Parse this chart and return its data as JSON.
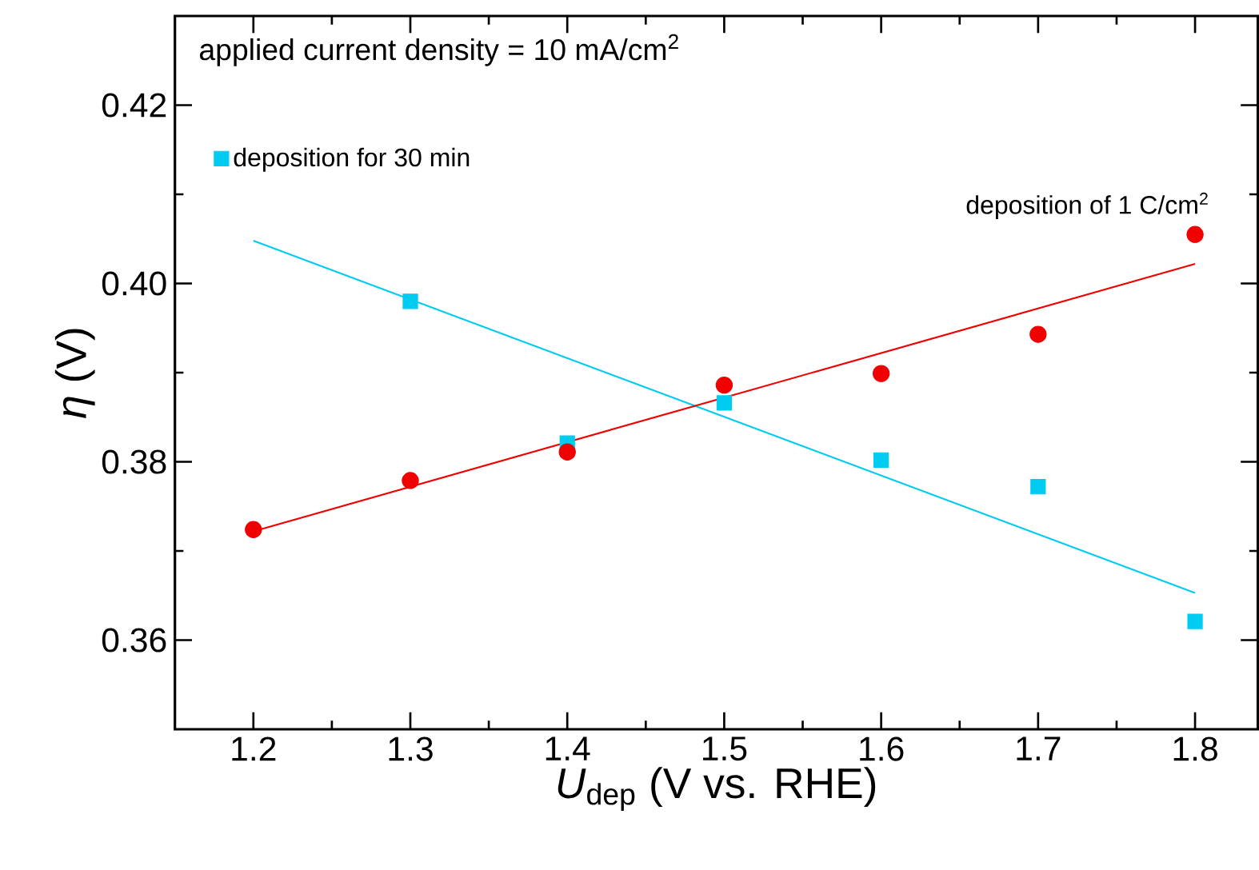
{
  "chart_data": {
    "type": "scatter",
    "xlabel": "*U*$_{dep}$ (V vs. RHE)",
    "ylabel": "*η* (V)",
    "xlim": [
      1.15,
      1.84
    ],
    "ylim": [
      0.35,
      0.43
    ],
    "xticks": [
      1.2,
      1.3,
      1.4,
      1.5,
      1.6,
      1.7,
      1.8
    ],
    "yticks": [
      0.36,
      0.38,
      {
        "value": 0.4,
        "label": "0.40"
      },
      0.42
    ],
    "legend": "top left",
    "grid": false,
    "annotations": [
      "applied current density = 10 mA/cm$^{2}$",
      {
        "text": "deposition of 1 C/cm$^{2}$",
        "x": 1.8,
        "y": 0.4055
      }
    ],
    "series": [
      {
        "name": "deposition for 30 min",
        "color": "#00ccf2",
        "marker": "square",
        "x": [
          1.3,
          1.4,
          1.5,
          1.6,
          1.7,
          1.8
        ],
        "values": [
          0.398,
          0.3821,
          0.3866,
          0.3802,
          0.3772,
          0.3621
        ]
      },
      {
        "color": "#f00000",
        "marker": "circle",
        "x": [
          1.2,
          1.3,
          1.4,
          1.5,
          1.6,
          1.7,
          1.8
        ],
        "values": [
          0.3724,
          0.3779,
          0.3811,
          0.3886,
          0.3899,
          0.3943,
          0.4055
        ]
      },
      {
        "type": "line",
        "marker": "none",
        "color": "#00ccf2",
        "x": [
          1.2,
          1.8
        ],
        "values": [
          0.4048,
          0.3653
        ]
      },
      {
        "type": "line",
        "marker": "none",
        "color": "#f00000",
        "x": [
          1.2,
          1.8
        ],
        "values": [
          0.3722,
          0.4022
        ]
      }
    ]
  }
}
